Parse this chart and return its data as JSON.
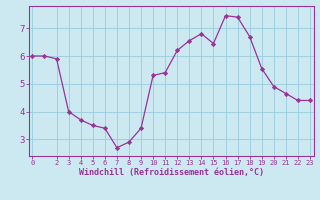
{
  "x": [
    0,
    1,
    2,
    3,
    4,
    5,
    6,
    7,
    8,
    9,
    10,
    11,
    12,
    13,
    14,
    15,
    16,
    17,
    18,
    19,
    20,
    21,
    22,
    23
  ],
  "y": [
    6.0,
    6.0,
    5.9,
    4.0,
    3.7,
    3.5,
    3.4,
    2.7,
    2.9,
    3.4,
    5.3,
    5.4,
    6.2,
    6.55,
    6.8,
    6.45,
    7.45,
    7.4,
    6.7,
    5.55,
    4.9,
    4.65,
    4.4,
    4.4
  ],
  "line_color": "#993399",
  "marker_color": "#993399",
  "bg_color": "#cce8f0",
  "grid_color": "#99ccdd",
  "axis_label_color": "#993399",
  "tick_color": "#993399",
  "xlabel": "Windchill (Refroidissement éolien,°C)",
  "xticks": [
    0,
    2,
    3,
    4,
    5,
    6,
    7,
    8,
    9,
    10,
    11,
    12,
    13,
    14,
    15,
    16,
    17,
    18,
    19,
    20,
    21,
    22,
    23
  ],
  "yticks": [
    3,
    4,
    5,
    6,
    7
  ],
  "xlim": [
    -0.3,
    23.3
  ],
  "ylim": [
    2.4,
    7.8
  ],
  "spine_color": "#993399"
}
